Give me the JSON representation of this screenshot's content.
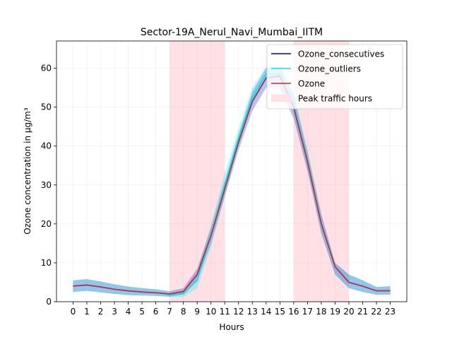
{
  "chart_data": {
    "type": "line",
    "title": "Sector-19A_Nerul_Navi_Mumbai_IITM",
    "xlabel": "Hours",
    "ylabel": "Ozone concentration in µg/m³",
    "xlim": [
      -1.2,
      24.2
    ],
    "ylim": [
      0,
      67
    ],
    "x": [
      0,
      1,
      2,
      3,
      4,
      5,
      6,
      7,
      8,
      9,
      10,
      11,
      12,
      13,
      14,
      15,
      16,
      17,
      18,
      19,
      20,
      21,
      22,
      23
    ],
    "x_ticks": [
      "0",
      "1",
      "2",
      "3",
      "4",
      "5",
      "6",
      "7",
      "8",
      "9",
      "10",
      "11",
      "12",
      "13",
      "14",
      "15",
      "16",
      "17",
      "18",
      "19",
      "20",
      "21",
      "22",
      "23"
    ],
    "y_ticks": [
      0,
      10,
      20,
      30,
      40,
      50,
      60
    ],
    "grid": true,
    "legend_position": "top-right",
    "peak_traffic_ranges": [
      [
        7,
        11
      ],
      [
        16,
        20
      ]
    ],
    "series": [
      {
        "name": "Ozone_consecutives",
        "color": "#0000cc",
        "values": [
          4.0,
          4.3,
          3.8,
          3.2,
          2.8,
          2.5,
          2.3,
          2.0,
          2.6,
          7.0,
          17.0,
          29.0,
          41.0,
          51.5,
          57.5,
          58.0,
          50.0,
          36.0,
          20.0,
          9.0,
          5.0,
          4.0,
          2.8,
          2.8
        ],
        "band_low": [
          2.5,
          2.8,
          2.4,
          2.0,
          1.7,
          1.6,
          1.5,
          1.3,
          1.9,
          5.5,
          15.0,
          27.0,
          39.0,
          49.0,
          55.0,
          55.0,
          47.0,
          33.5,
          17.5,
          7.0,
          3.5,
          2.5,
          1.8,
          1.8
        ],
        "band_high": [
          5.5,
          5.8,
          5.2,
          4.5,
          3.9,
          3.5,
          3.2,
          2.7,
          3.5,
          8.5,
          19.0,
          31.0,
          43.0,
          54.0,
          60.0,
          60.5,
          53.0,
          38.5,
          22.5,
          10.0,
          7.0,
          5.5,
          3.8,
          4.0
        ]
      },
      {
        "name": "Ozone_outliers",
        "color": "#00e5e5",
        "values": [
          4.0,
          4.3,
          3.8,
          3.2,
          2.8,
          2.5,
          2.3,
          1.8,
          2.0,
          5.5,
          17.0,
          30.0,
          42.0,
          52.5,
          58.5,
          58.5,
          50.5,
          36.5,
          20.0,
          9.0,
          5.0,
          4.0,
          2.8,
          2.8
        ],
        "band_low": [
          2.5,
          2.8,
          2.4,
          2.0,
          1.7,
          1.6,
          1.5,
          1.2,
          1.2,
          3.5,
          14.0,
          27.0,
          40.0,
          50.5,
          57.0,
          57.5,
          48.0,
          34.0,
          17.5,
          7.0,
          3.5,
          2.5,
          1.8,
          1.8
        ],
        "band_high": [
          5.5,
          5.8,
          5.2,
          4.5,
          3.9,
          3.5,
          3.2,
          2.6,
          3.0,
          7.5,
          20.0,
          33.0,
          44.5,
          55.0,
          60.5,
          61.0,
          54.0,
          39.0,
          22.5,
          10.0,
          7.0,
          5.5,
          3.8,
          4.0
        ]
      },
      {
        "name": "Ozone",
        "color": "#d62728",
        "values": [
          4.0,
          4.3,
          3.8,
          3.2,
          2.8,
          2.5,
          2.3,
          2.0,
          2.6,
          7.0,
          17.0,
          29.0,
          41.0,
          51.5,
          57.5,
          58.0,
          50.0,
          36.0,
          20.0,
          9.0,
          5.0,
          4.0,
          2.8,
          2.8
        ]
      }
    ],
    "legend": [
      {
        "label": "Ozone_consecutives",
        "kind": "line",
        "color": "#0000cc"
      },
      {
        "label": "Ozone_outliers",
        "kind": "line",
        "color": "#00e5e5"
      },
      {
        "label": "Ozone",
        "kind": "line",
        "color": "#d62728"
      },
      {
        "label": "Peak traffic hours",
        "kind": "patch",
        "color": "#ffe0e4"
      }
    ]
  }
}
